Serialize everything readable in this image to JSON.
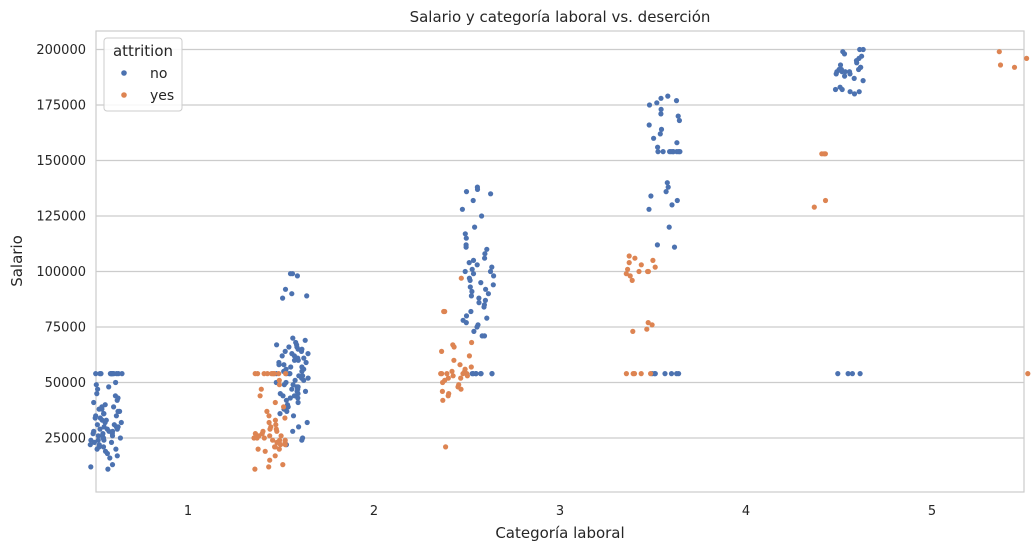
{
  "chart_data": {
    "type": "scatter",
    "title": "Salario y categoría laboral vs. deserción",
    "xlabel": "Categoría laboral",
    "ylabel": "Salario",
    "categories": [
      "1",
      "2",
      "3",
      "4",
      "5"
    ],
    "ylim": [
      0,
      210000
    ],
    "yticks": [
      25000,
      50000,
      75000,
      100000,
      125000,
      150000,
      175000,
      200000
    ],
    "ytick_labels": [
      "25000",
      "50000",
      "75000",
      "100000",
      "125000",
      "150000",
      "175000",
      "200000"
    ],
    "grid": "horizontal",
    "legend": {
      "title": "attrition",
      "position": "top-left"
    },
    "series": [
      {
        "name": "no",
        "color": "#4c72b0",
        "points": [
          {
            "category": "1",
            "values": [
              54000,
              54000,
              54000,
              54000,
              54000,
              54000,
              54000,
              54000,
              54000,
              54000,
              54000,
              54000,
              50000,
              49000,
              48000,
              47000,
              45000,
              44000,
              43000,
              42000,
              41000,
              40000,
              39000,
              39000,
              38000,
              38000,
              37000,
              37000,
              36000,
              36000,
              35000,
              35000,
              34000,
              34000,
              33000,
              33000,
              32000,
              32000,
              31000,
              31000,
              30000,
              30000,
              30000,
              29000,
              29000,
              29000,
              28000,
              28000,
              28000,
              27000,
              27000,
              27000,
              26000,
              26000,
              26000,
              25000,
              25000,
              25000,
              24000,
              24000,
              24000,
              23000,
              23000,
              22000,
              22000,
              21000,
              21000,
              20000,
              20000,
              19000,
              18000,
              17000,
              16000,
              13000,
              12000,
              11000
            ]
          },
          {
            "category": "2",
            "values": [
              99000,
              99000,
              98000,
              92000,
              90000,
              89000,
              88000,
              70000,
              69000,
              68000,
              67000,
              67000,
              66000,
              66000,
              65000,
              65000,
              64000,
              64000,
              63000,
              63000,
              62000,
              62000,
              61000,
              61000,
              60000,
              60000,
              59000,
              59000,
              58000,
              58000,
              57000,
              57000,
              56000,
              56000,
              55000,
              55000,
              54000,
              54000,
              54000,
              54000,
              53000,
              53000,
              52000,
              52000,
              51000,
              51000,
              50000,
              50000,
              49000,
              49000,
              48000,
              48000,
              47000,
              47000,
              46000,
              46000,
              45000,
              45000,
              44000,
              44000,
              43000,
              43000,
              42000,
              41000,
              40000,
              39000,
              38000,
              37000,
              36000,
              35000,
              32000,
              30000,
              28000,
              25000,
              24000,
              22000
            ]
          },
          {
            "category": "3",
            "values": [
              138000,
              137000,
              136000,
              135000,
              132000,
              128000,
              125000,
              120000,
              117000,
              115000,
              112000,
              111000,
              110000,
              108000,
              106000,
              105000,
              104000,
              103000,
              102000,
              101000,
              100000,
              100000,
              99000,
              98000,
              97000,
              96000,
              95000,
              94000,
              93000,
              92000,
              91000,
              90000,
              89000,
              88000,
              87000,
              86000,
              85000,
              84000,
              82000,
              80000,
              79000,
              78000,
              77000,
              76000,
              75000,
              73000,
              71000,
              71000,
              54000,
              54000,
              54000,
              54000,
              54000,
              54000,
              54000,
              54000
            ]
          },
          {
            "category": "4",
            "values": [
              179000,
              178000,
              177000,
              176000,
              175000,
              173000,
              171000,
              170000,
              168000,
              166000,
              164000,
              162000,
              160000,
              158000,
              156000,
              154000,
              154000,
              154000,
              154000,
              154000,
              154000,
              154000,
              154000,
              154000,
              140000,
              138000,
              136000,
              134000,
              132000,
              130000,
              128000,
              120000,
              112000,
              111000,
              54000,
              54000,
              54000,
              54000,
              54000,
              54000,
              54000
            ]
          },
          {
            "category": "5",
            "values": [
              200000,
              200000,
              199000,
              198000,
              197000,
              196000,
              195000,
              194000,
              193000,
              192000,
              192000,
              191000,
              191000,
              191000,
              190000,
              190000,
              190000,
              190000,
              189000,
              189000,
              188000,
              187000,
              186000,
              183000,
              182000,
              182000,
              181000,
              181000,
              180000,
              54000,
              54000,
              54000,
              54000
            ]
          }
        ]
      },
      {
        "name": "yes",
        "color": "#dd8452",
        "points": [
          {
            "category": "1",
            "values": [
              54000,
              54000,
              54000,
              54000,
              54000,
              54000,
              54000,
              54000,
              54000,
              54000,
              51000,
              49000,
              47000,
              44000,
              41000,
              39000,
              37000,
              35000,
              34000,
              33000,
              32000,
              31000,
              30000,
              29000,
              29000,
              28000,
              28000,
              27000,
              27000,
              26000,
              26000,
              26000,
              25000,
              25000,
              25000,
              24000,
              24000,
              24000,
              23000,
              23000,
              23000,
              22000,
              22000,
              21000,
              21000,
              20000,
              20000,
              19000,
              17000,
              15000,
              13000,
              12000,
              11000
            ]
          },
          {
            "category": "2",
            "values": [
              97000,
              82000,
              82000,
              68000,
              67000,
              66000,
              64000,
              62000,
              60000,
              58000,
              57000,
              56000,
              55000,
              55000,
              54000,
              54000,
              54000,
              54000,
              54000,
              53000,
              53000,
              52000,
              52000,
              51000,
              50000,
              49000,
              48000,
              47000,
              46000,
              45000,
              44000,
              42000,
              21000
            ]
          },
          {
            "category": "3",
            "values": [
              107000,
              106000,
              105000,
              104000,
              103000,
              102000,
              101000,
              100000,
              100000,
              100000,
              99000,
              98000,
              96000,
              77000,
              76000,
              74000,
              73000,
              54000,
              54000,
              54000,
              54000,
              54000
            ]
          },
          {
            "category": "4",
            "values": [
              153000,
              153000,
              153000,
              132000,
              129000
            ]
          },
          {
            "category": "5",
            "values": [
              199000,
              196000,
              193000,
              192000,
              54000
            ]
          }
        ]
      }
    ]
  }
}
